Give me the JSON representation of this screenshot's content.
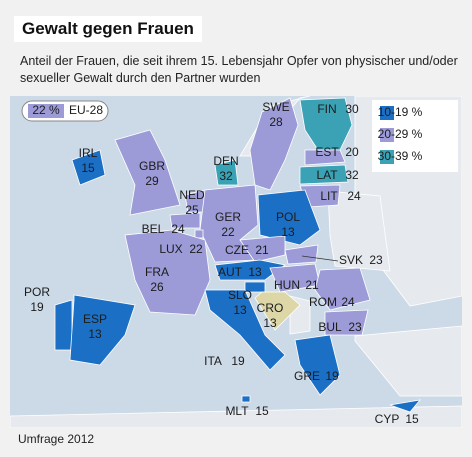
{
  "header": {
    "title": "Gewalt gegen Frauen",
    "subtitle": "Anteil der Frauen, die seit ihrem 15. Lebensjahr Opfer von physischer und/oder sexueller Gewalt durch den Partner wurden"
  },
  "eu_average": {
    "value": "22 %",
    "label": "EU-28"
  },
  "legend": [
    {
      "label": "10-19 %",
      "color": "#1b70c6"
    },
    {
      "label": "20-29 %",
      "color": "#9c9bd8"
    },
    {
      "label": "30-39 %",
      "color": "#3aa2b4"
    }
  ],
  "countries": [
    {
      "code": "FIN",
      "value": "30",
      "color": "#3aa2b4"
    },
    {
      "code": "SWE",
      "value": "28",
      "color": "#9c9bd8"
    },
    {
      "code": "EST",
      "value": "20",
      "color": "#9c9bd8"
    },
    {
      "code": "LAT",
      "value": "32",
      "color": "#3aa2b4"
    },
    {
      "code": "LIT",
      "value": "24",
      "color": "#9c9bd8"
    },
    {
      "code": "DEN",
      "value": "32",
      "color": "#3aa2b4"
    },
    {
      "code": "IRL",
      "value": "15",
      "color": "#1b70c6"
    },
    {
      "code": "GBR",
      "value": "29",
      "color": "#9c9bd8"
    },
    {
      "code": "NED",
      "value": "25",
      "color": "#9c9bd8"
    },
    {
      "code": "BEL",
      "value": "24",
      "color": "#9c9bd8"
    },
    {
      "code": "GER",
      "value": "22",
      "color": "#9c9bd8"
    },
    {
      "code": "POL",
      "value": "13",
      "color": "#1b70c6"
    },
    {
      "code": "LUX",
      "value": "22",
      "color": "#9c9bd8"
    },
    {
      "code": "CZE",
      "value": "21",
      "color": "#9c9bd8"
    },
    {
      "code": "SVK",
      "value": "23",
      "color": "#9c9bd8"
    },
    {
      "code": "FRA",
      "value": "26",
      "color": "#9c9bd8"
    },
    {
      "code": "AUT",
      "value": "13",
      "color": "#1b70c6"
    },
    {
      "code": "HUN",
      "value": "21",
      "color": "#9c9bd8"
    },
    {
      "code": "SLO",
      "value": "13",
      "color": "#1b70c6"
    },
    {
      "code": "CRO",
      "value": "13",
      "color": "#ddd6a6"
    },
    {
      "code": "ROM",
      "value": "24",
      "color": "#9c9bd8"
    },
    {
      "code": "POR",
      "value": "19",
      "color": "#1b70c6"
    },
    {
      "code": "ESP",
      "value": "13",
      "color": "#1b70c6"
    },
    {
      "code": "BUL",
      "value": "23",
      "color": "#9c9bd8"
    },
    {
      "code": "ITA",
      "value": "19",
      "color": "#1b70c6"
    },
    {
      "code": "GRE",
      "value": "19",
      "color": "#1b70c6"
    },
    {
      "code": "MLT",
      "value": "15",
      "color": "#1b70c6"
    },
    {
      "code": "CYP",
      "value": "15",
      "color": "#1b70c6"
    }
  ],
  "source": "Umfrage 2012"
}
